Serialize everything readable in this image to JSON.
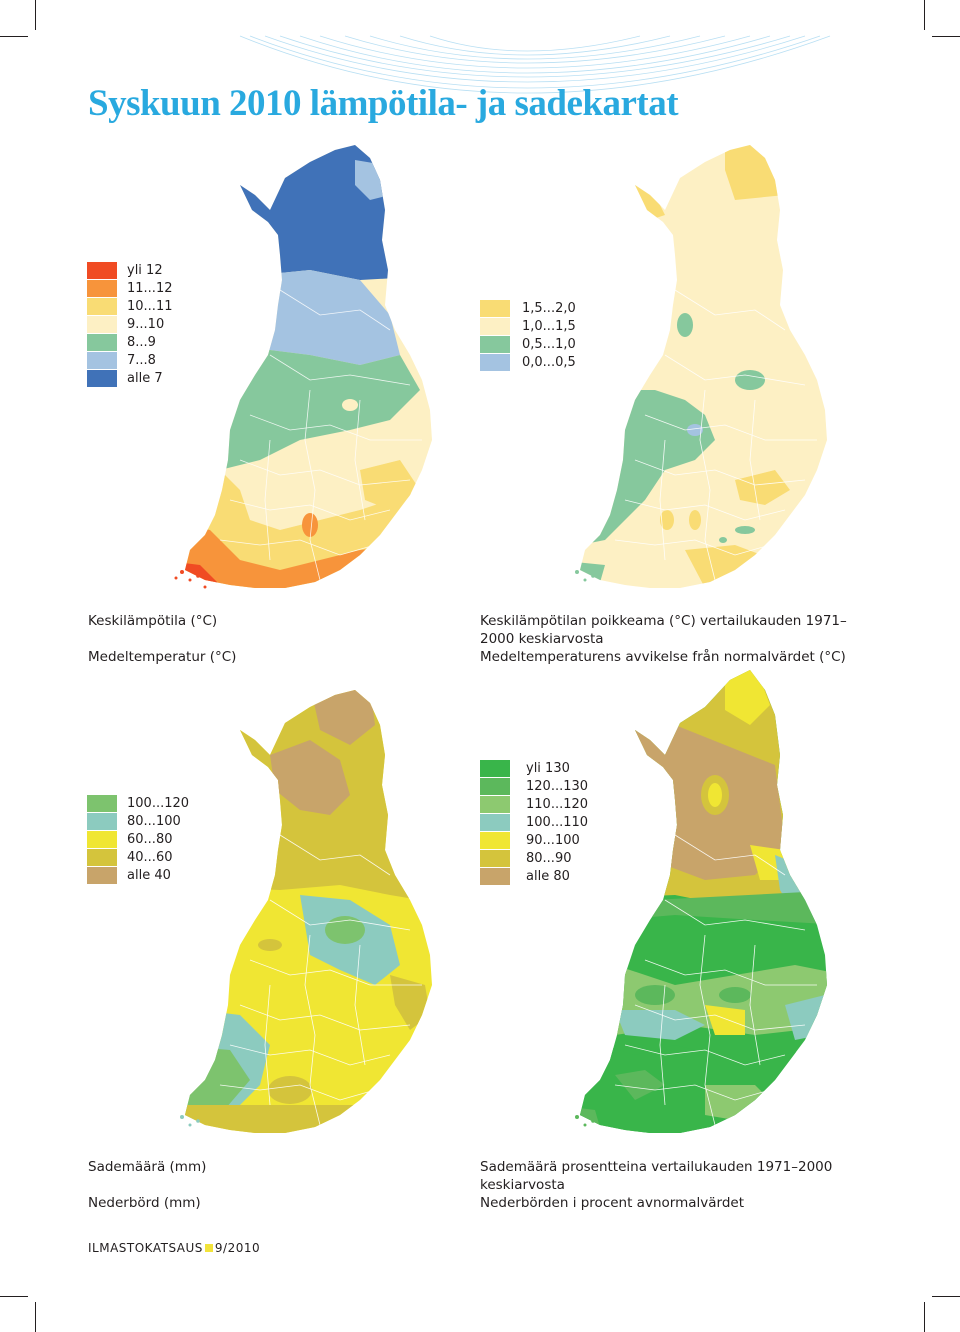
{
  "page": {
    "title": "Syskuun 2010 lämpötila- ja sadekartat",
    "footer_text": "ILMASTOKATSAUS",
    "footer_issue": "9/2010",
    "footer_square_color": "#f2e33a",
    "title_color": "#29a9df"
  },
  "maps": [
    {
      "id": "temperature",
      "caption_fi": "Keskilämpötila (°C)",
      "caption_sv": "Medeltemperatur (°C)",
      "legend": [
        {
          "label": "yli 12",
          "color": "#f04b23"
        },
        {
          "label": "11...12",
          "color": "#f7943b"
        },
        {
          "label": "10...11",
          "color": "#f9dc74"
        },
        {
          "label": "9...10",
          "color": "#fdf0c4"
        },
        {
          "label": "8...9",
          "color": "#86c89d"
        },
        {
          "label": "7...8",
          "color": "#a4c3e1"
        },
        {
          "label": "alle 7",
          "color": "#4072b8"
        }
      ]
    },
    {
      "id": "temperature-deviation",
      "caption_fi": "Keskilämpötilan poikkeama (°C) vertailukauden 1971–",
      "caption_fi_2": "2000 keskiarvosta",
      "caption_sv": "Medeltemperaturens avvikelse från normalvärdet (°C)",
      "legend": [
        {
          "label": "1,5...2,0",
          "color": "#f9dc74"
        },
        {
          "label": "1,0...1,5",
          "color": "#fdf0c4"
        },
        {
          "label": "0,5...1,0",
          "color": "#86c89d"
        },
        {
          "label": "0,0...0,5",
          "color": "#a4c3e1"
        }
      ]
    },
    {
      "id": "precipitation",
      "caption_fi": "Sademäärä (mm)",
      "caption_sv": "Nederbörd (mm)",
      "legend": [
        {
          "label": "100...120",
          "color": "#7dc36e"
        },
        {
          "label": "80...100",
          "color": "#8ccbbf"
        },
        {
          "label": "60...80",
          "color": "#f0e633"
        },
        {
          "label": "40...60",
          "color": "#d4c43c"
        },
        {
          "label": "alle 40",
          "color": "#c8a46a"
        }
      ]
    },
    {
      "id": "precipitation-percent",
      "caption_fi": "Sademäärä prosentteina vertailukauden 1971–2000",
      "caption_fi_2": "keskiarvosta",
      "caption_sv": "Nederbörden i procent avnormalvärdet",
      "legend": [
        {
          "label": "yli 130",
          "color": "#39b54a"
        },
        {
          "label": "120...130",
          "color": "#5cb85c"
        },
        {
          "label": "110...120",
          "color": "#8dc970"
        },
        {
          "label": "100...110",
          "color": "#8ccbbf"
        },
        {
          "label": "90...100",
          "color": "#f0e633"
        },
        {
          "label": "80...90",
          "color": "#d4c43c"
        },
        {
          "label": "alle 80",
          "color": "#c8a46a"
        }
      ]
    }
  ]
}
